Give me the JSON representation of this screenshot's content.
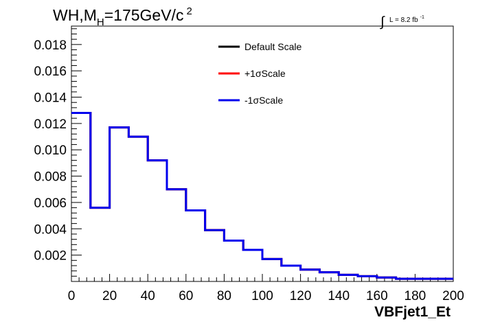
{
  "chart_data": {
    "type": "step-histogram",
    "title": {
      "prefix": "WH,M",
      "subscript": "H",
      "value": "=175GeV/c",
      "superscript": "2"
    },
    "lumi": {
      "integral": "∫",
      "text": "L = 8.2 fb",
      "superscript": "-1"
    },
    "xlabel": "VBFjet1_Et",
    "ylabel": "",
    "xlim": [
      0,
      200
    ],
    "ylim": [
      0,
      0.0194
    ],
    "x_ticks": [
      0,
      20,
      40,
      60,
      80,
      100,
      120,
      140,
      160,
      180,
      200
    ],
    "y_ticks": [
      0.002,
      0.004,
      0.006,
      0.008,
      0.01,
      0.012,
      0.014,
      0.016,
      0.018
    ],
    "y_tick_labels": [
      "0.002",
      "0.004",
      "0.006",
      "0.008",
      "0.010",
      "0.012",
      "0.014",
      "0.016",
      "0.018"
    ],
    "bin_edges": [
      0,
      10,
      20,
      30,
      40,
      50,
      60,
      70,
      80,
      90,
      100,
      110,
      120,
      130,
      140,
      150,
      160,
      170,
      180,
      190,
      200
    ],
    "legend_position": "top-center",
    "series": [
      {
        "name": "Default Scale",
        "color": "#000000",
        "values": [
          0.0128,
          0.0056,
          0.0117,
          0.011,
          0.0092,
          0.007,
          0.0054,
          0.0039,
          0.0031,
          0.0024,
          0.0017,
          0.0012,
          0.0009,
          0.0007,
          0.0005,
          0.0004,
          0.0003,
          0.0002,
          0.0002,
          0.0002
        ]
      },
      {
        "name": "+1σScale",
        "color": "#ff0000",
        "values": [
          0.0128,
          0.0056,
          0.0117,
          0.011,
          0.0092,
          0.007,
          0.0054,
          0.0039,
          0.0031,
          0.0024,
          0.0017,
          0.0012,
          0.0009,
          0.0007,
          0.0005,
          0.0004,
          0.0003,
          0.0002,
          0.0002,
          0.0002
        ]
      },
      {
        "name": "-1σScale",
        "color": "#0000ee",
        "values": [
          0.0128,
          0.0056,
          0.0117,
          0.011,
          0.0092,
          0.007,
          0.0054,
          0.0039,
          0.0031,
          0.0024,
          0.0017,
          0.0012,
          0.0009,
          0.0007,
          0.0005,
          0.0004,
          0.0003,
          0.0002,
          0.0002,
          0.0002
        ]
      }
    ]
  }
}
